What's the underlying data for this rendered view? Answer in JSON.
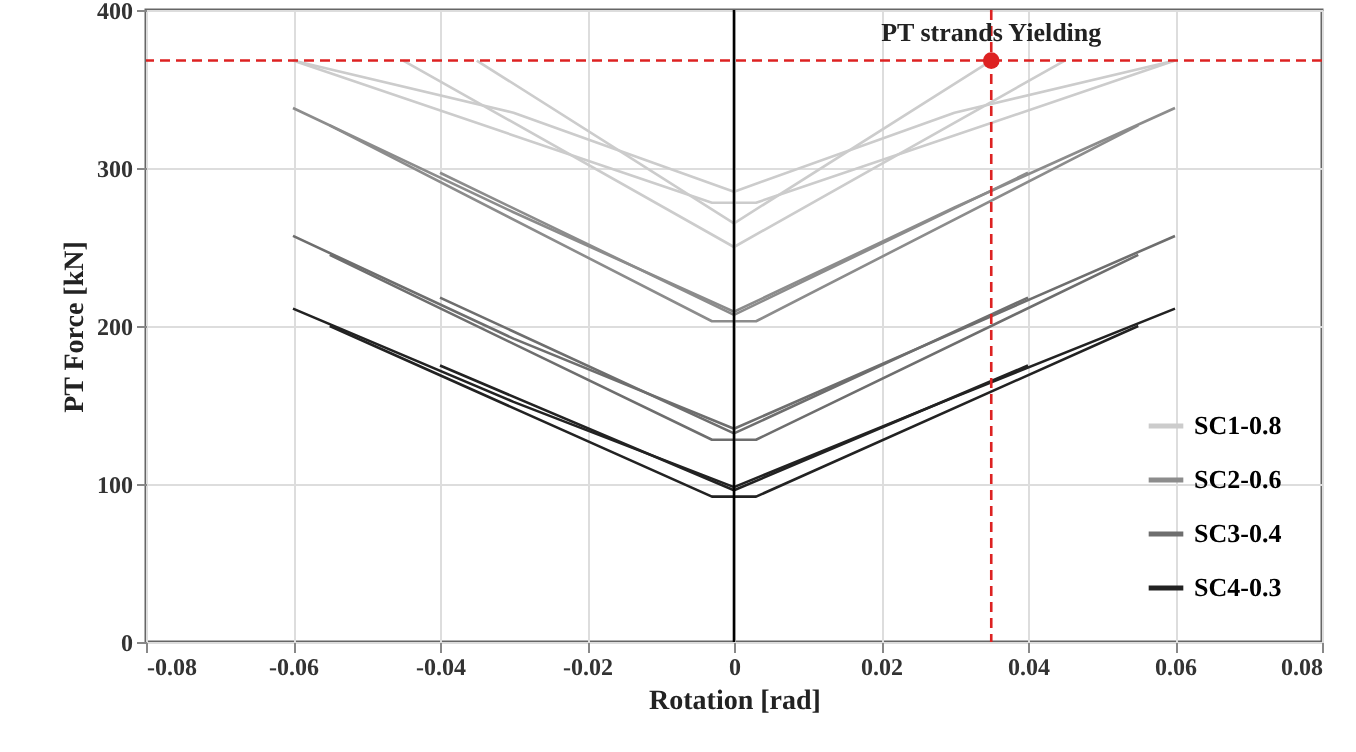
{
  "chart_data": {
    "type": "line",
    "xlabel": "Rotation [rad]",
    "ylabel": "PT Force [kN]",
    "xlim": [
      -0.08,
      0.08
    ],
    "xticks": [
      -0.08,
      -0.06,
      -0.04,
      -0.02,
      {
        "value": 0,
        "label": "0"
      },
      0.02,
      0.04,
      0.06,
      0.08
    ],
    "ylim": [
      0,
      400
    ],
    "yticks": [
      0,
      100,
      200,
      300,
      400
    ],
    "grid": true,
    "legend": "bottom right",
    "marker": "none",
    "line_style": "solid",
    "series": [
      {
        "name": "SC1-0.8",
        "color": "#cccccc",
        "x": [
          -0.06,
          -0.03,
          0,
          0.03,
          0.06
        ],
        "values": [
          368,
          335,
          285,
          335,
          368
        ]
      },
      {
        "color": "#cccccc",
        "x": [
          -0.06,
          -0.003,
          0.003,
          0.06
        ],
        "values": [
          368,
          278,
          278,
          368
        ]
      },
      {
        "color": "#cccccc",
        "x": [
          -0.045,
          0,
          0.045
        ],
        "values": [
          368,
          250,
          368
        ]
      },
      {
        "color": "#cccccc",
        "x": [
          -0.035,
          0,
          0.035
        ],
        "values": [
          368,
          265,
          368
        ]
      },
      {
        "name": "SC2-0.6",
        "color": "#8c8c8c",
        "x": [
          -0.06,
          -0.03,
          0,
          0.03,
          0.06
        ],
        "values": [
          338,
          272,
          209,
          275,
          338
        ]
      },
      {
        "color": "#8c8c8c",
        "x": [
          -0.055,
          -0.003,
          0.003,
          0.055
        ],
        "values": [
          327,
          203,
          203,
          327
        ]
      },
      {
        "color": "#8c8c8c",
        "x": [
          -0.04,
          0,
          0.04
        ],
        "values": [
          297,
          207,
          297
        ]
      },
      {
        "name": "SC3-0.4",
        "color": "#6e6e6e",
        "x": [
          -0.06,
          -0.03,
          0,
          0.03,
          0.06
        ],
        "values": [
          257,
          192,
          135,
          196,
          257
        ]
      },
      {
        "color": "#6e6e6e",
        "x": [
          -0.055,
          -0.003,
          0.003,
          0.055
        ],
        "values": [
          245,
          128,
          128,
          245
        ]
      },
      {
        "color": "#6e6e6e",
        "x": [
          -0.04,
          0,
          0.04
        ],
        "values": [
          218,
          132,
          218
        ]
      },
      {
        "name": "SC4-0.3",
        "color": "#222222",
        "x": [
          -0.06,
          -0.03,
          0,
          0.03,
          0.06
        ],
        "values": [
          211,
          152,
          98,
          155,
          211
        ]
      },
      {
        "color": "#222222",
        "x": [
          -0.055,
          -0.003,
          0.003,
          0.055
        ],
        "values": [
          200,
          92,
          92,
          200
        ]
      },
      {
        "color": "#222222",
        "x": [
          -0.04,
          0,
          0.04
        ],
        "values": [
          175,
          96,
          175
        ]
      },
      {
        "type": "scatter",
        "color": "#dd2222",
        "marker": "circle",
        "x": [
          0.035
        ],
        "values": [
          368
        ]
      }
    ],
    "ref_lines": [
      {
        "axis": "y",
        "value": 368,
        "color": "#dd2222",
        "line_style": "dashed"
      },
      {
        "axis": "x",
        "value": 0.035,
        "color": "#dd2222",
        "line_style": "dashed"
      },
      {
        "axis": "x",
        "value": 0,
        "color": "#000000",
        "line_style": "solid"
      }
    ],
    "annotations": [
      {
        "text": "PT strands Yielding",
        "x": 0.035,
        "y": 368
      }
    ]
  }
}
